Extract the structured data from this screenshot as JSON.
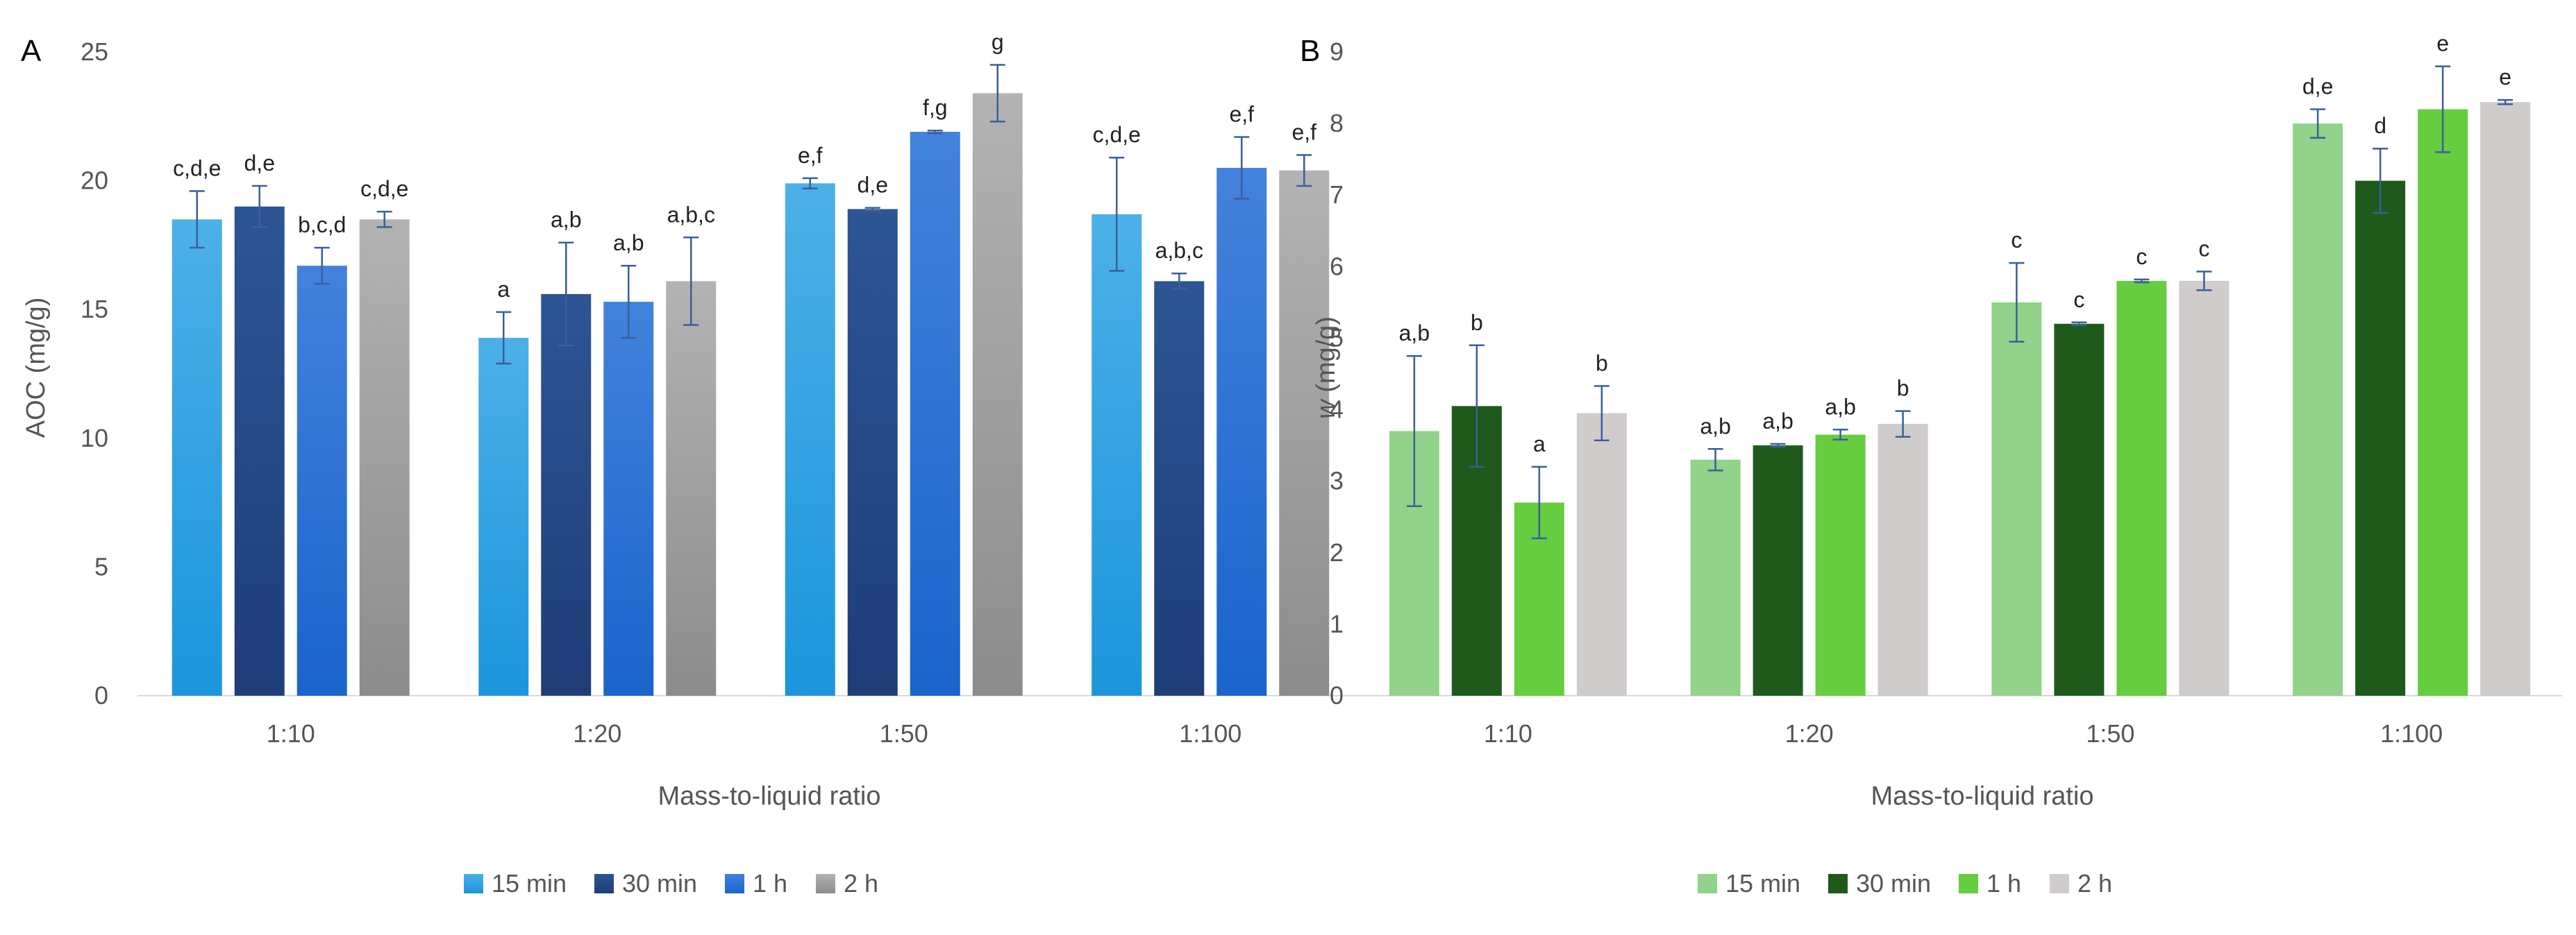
{
  "chart_data": [
    {
      "panel": "A",
      "type": "bar",
      "xlabel": "Mass-to-liquid ratio",
      "ylabel": "AOC (mg/g)",
      "ylim": [
        0,
        25
      ],
      "yticks": [
        0,
        5,
        10,
        15,
        20,
        25
      ],
      "categories": [
        "1:10",
        "1:20",
        "1:50",
        "1:100"
      ],
      "legend_position": "bottom",
      "series": [
        {
          "name": "15 min",
          "color": "#1b95dc",
          "color_top": "#4db0e8",
          "values": [
            18.5,
            13.9,
            19.9,
            18.7
          ],
          "errors": [
            1.1,
            1.0,
            0.2,
            2.2
          ],
          "labels": [
            "c,d,e",
            "a",
            "e,f",
            "c,d,e"
          ]
        },
        {
          "name": "30 min",
          "color": "#1f3d78",
          "color_top": "#2d5594",
          "values": [
            19.0,
            15.6,
            18.9,
            16.1
          ],
          "errors": [
            0.8,
            2.0,
            0.05,
            0.3
          ],
          "labels": [
            "d,e",
            "a,b",
            "d,e",
            "a,b,c"
          ]
        },
        {
          "name": "1 h",
          "color": "#1a64cc",
          "color_top": "#4382dc",
          "values": [
            16.7,
            15.3,
            21.9,
            20.5
          ],
          "errors": [
            0.7,
            1.4,
            0.05,
            1.2
          ],
          "labels": [
            "b,c,d",
            "a,b",
            "f,g",
            "e,f"
          ]
        },
        {
          "name": "2 h",
          "color": "#8c8c8c",
          "color_top": "#b3b3b3",
          "values": [
            18.5,
            16.1,
            23.4,
            20.4
          ],
          "errors": [
            0.3,
            1.7,
            1.1,
            0.6
          ],
          "labels": [
            "c,d,e",
            "a,b,c",
            "g",
            "e,f"
          ]
        }
      ]
    },
    {
      "panel": "B",
      "type": "bar",
      "xlabel": "Mass-to-liquid ratio",
      "ylabel": "w (mg/g)",
      "ylim": [
        0,
        9
      ],
      "yticks": [
        0,
        1,
        2,
        3,
        4,
        5,
        6,
        7,
        8,
        9
      ],
      "categories": [
        "1:10",
        "1:20",
        "1:50",
        "1:100"
      ],
      "legend_position": "bottom",
      "series": [
        {
          "name": "15 min",
          "color": "#92d28a",
          "color_top": "#92d28a",
          "values": [
            3.7,
            3.3,
            5.5,
            8.0
          ],
          "errors": [
            1.05,
            0.15,
            0.55,
            0.2
          ],
          "labels": [
            "a,b",
            "a,b",
            "c",
            "d,e"
          ]
        },
        {
          "name": "30 min",
          "color": "#1f5a1c",
          "color_top": "#1f5a1c",
          "values": [
            4.05,
            3.5,
            5.2,
            7.2
          ],
          "errors": [
            0.85,
            0.02,
            0.02,
            0.45
          ],
          "labels": [
            "b",
            "a,b",
            "c",
            "d"
          ]
        },
        {
          "name": "1 h",
          "color": "#66cc40",
          "color_top": "#66cc40",
          "values": [
            2.7,
            3.65,
            5.8,
            8.2
          ],
          "errors": [
            0.5,
            0.07,
            0.02,
            0.6
          ],
          "labels": [
            "a",
            "a,b",
            "c",
            "e"
          ]
        },
        {
          "name": "2 h",
          "color": "#d0cccc",
          "color_top": "#d0cccc",
          "values": [
            3.95,
            3.8,
            5.8,
            8.3
          ],
          "errors": [
            0.38,
            0.18,
            0.13,
            0.03
          ],
          "labels": [
            "b",
            "b",
            "c",
            "e"
          ]
        }
      ]
    }
  ]
}
